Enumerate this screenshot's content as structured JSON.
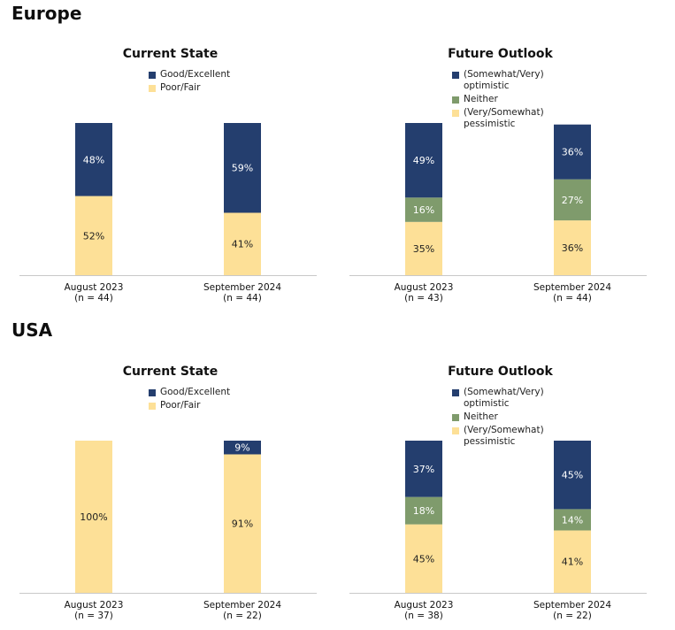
{
  "colors": {
    "navy": "#243e6e",
    "yellow": "#fde097",
    "green": "#7f9b6c"
  },
  "regions": [
    {
      "name": "Europe",
      "charts": [
        {
          "title": "Current State",
          "legend": [
            {
              "label": "Good/Excellent",
              "color": "#243e6e"
            },
            {
              "label": "Poor/Fair",
              "color": "#fde097"
            }
          ],
          "categories": [
            {
              "label": "August 2023",
              "n": "(n = 44)"
            },
            {
              "label": "September 2024",
              "n": "(n = 44)"
            }
          ],
          "series": [
            {
              "name": "Poor/Fair",
              "color": "#fde097",
              "values": [
                52,
                41
              ],
              "labels": [
                "52%",
                "41%"
              ]
            },
            {
              "name": "Good/Excellent",
              "color": "#243e6e",
              "values": [
                48,
                59
              ],
              "labels": [
                "48%",
                "59%"
              ]
            }
          ]
        },
        {
          "title": "Future Outlook",
          "legend": [
            {
              "label": "(Somewhat/Very) optimistic",
              "color": "#243e6e"
            },
            {
              "label": "Neither",
              "color": "#7f9b6c"
            },
            {
              "label": "(Very/Somewhat) pessimistic",
              "color": "#fde097"
            }
          ],
          "categories": [
            {
              "label": "August 2023",
              "n": "(n = 43)"
            },
            {
              "label": "September 2024",
              "n": "(n = 44)"
            }
          ],
          "series": [
            {
              "name": "(Very/Somewhat) pessimistic",
              "color": "#fde097",
              "values": [
                35,
                36
              ],
              "labels": [
                "35%",
                "36%"
              ]
            },
            {
              "name": "Neither",
              "color": "#7f9b6c",
              "values": [
                16,
                27
              ],
              "labels": [
                "16%",
                "27%"
              ]
            },
            {
              "name": "(Somewhat/Very) optimistic",
              "color": "#243e6e",
              "values": [
                49,
                36
              ],
              "labels": [
                "49%",
                "36%"
              ]
            }
          ]
        }
      ]
    },
    {
      "name": "USA",
      "charts": [
        {
          "title": "Current State",
          "legend": [
            {
              "label": "Good/Excellent",
              "color": "#243e6e"
            },
            {
              "label": "Poor/Fair",
              "color": "#fde097"
            }
          ],
          "categories": [
            {
              "label": "August 2023",
              "n": "(n = 37)"
            },
            {
              "label": "September 2024",
              "n": "(n = 22)"
            }
          ],
          "series": [
            {
              "name": "Poor/Fair",
              "color": "#fde097",
              "values": [
                100,
                91
              ],
              "labels": [
                "100%",
                "91%"
              ]
            },
            {
              "name": "Good/Excellent",
              "color": "#243e6e",
              "values": [
                0,
                9
              ],
              "labels": [
                "",
                "9%"
              ]
            }
          ]
        },
        {
          "title": "Future Outlook",
          "legend": [
            {
              "label": "(Somewhat/Very) optimistic",
              "color": "#243e6e"
            },
            {
              "label": "Neither",
              "color": "#7f9b6c"
            },
            {
              "label": "(Very/Somewhat) pessimistic",
              "color": "#fde097"
            }
          ],
          "categories": [
            {
              "label": "August 2023",
              "n": "(n = 38)"
            },
            {
              "label": "September 2024",
              "n": "(n = 22)"
            }
          ],
          "series": [
            {
              "name": "(Very/Somewhat) pessimistic",
              "color": "#fde097",
              "values": [
                45,
                41
              ],
              "labels": [
                "45%",
                "41%"
              ]
            },
            {
              "name": "Neither",
              "color": "#7f9b6c",
              "values": [
                18,
                14
              ],
              "labels": [
                "18%",
                "14%"
              ]
            },
            {
              "name": "(Somewhat/Very) optimistic",
              "color": "#243e6e",
              "values": [
                37,
                45
              ],
              "labels": [
                "37%",
                "45%"
              ]
            }
          ]
        }
      ]
    }
  ],
  "chart_data": [
    {
      "type": "bar",
      "title": "Current State",
      "stacked": true,
      "categories": [
        "August 2023",
        "September 2024"
      ],
      "series": [
        {
          "name": "Poor/Fair",
          "values": [
            52,
            41
          ]
        },
        {
          "name": "Good/Excellent",
          "values": [
            48,
            59
          ]
        }
      ],
      "ylim": [
        0,
        100
      ]
    },
    {
      "type": "bar",
      "title": "Future Outlook",
      "stacked": true,
      "categories": [
        "August 2023",
        "September 2024"
      ],
      "series": [
        {
          "name": "(Very/Somewhat) pessimistic",
          "values": [
            35,
            36
          ]
        },
        {
          "name": "Neither",
          "values": [
            16,
            27
          ]
        },
        {
          "name": "(Somewhat/Very) optimistic",
          "values": [
            49,
            36
          ]
        }
      ],
      "ylim": [
        0,
        100
      ]
    },
    {
      "type": "bar",
      "title": "Current State",
      "stacked": true,
      "categories": [
        "August 2023",
        "September 2024"
      ],
      "series": [
        {
          "name": "Poor/Fair",
          "values": [
            100,
            91
          ]
        },
        {
          "name": "Good/Excellent",
          "values": [
            0,
            9
          ]
        }
      ],
      "ylim": [
        0,
        100
      ]
    },
    {
      "type": "bar",
      "title": "Future Outlook",
      "stacked": true,
      "categories": [
        "August 2023",
        "September 2024"
      ],
      "series": [
        {
          "name": "(Very/Somewhat) pessimistic",
          "values": [
            45,
            41
          ]
        },
        {
          "name": "Neither",
          "values": [
            18,
            14
          ]
        },
        {
          "name": "(Somewhat/Very) optimistic",
          "values": [
            37,
            45
          ]
        }
      ],
      "ylim": [
        0,
        100
      ]
    }
  ]
}
